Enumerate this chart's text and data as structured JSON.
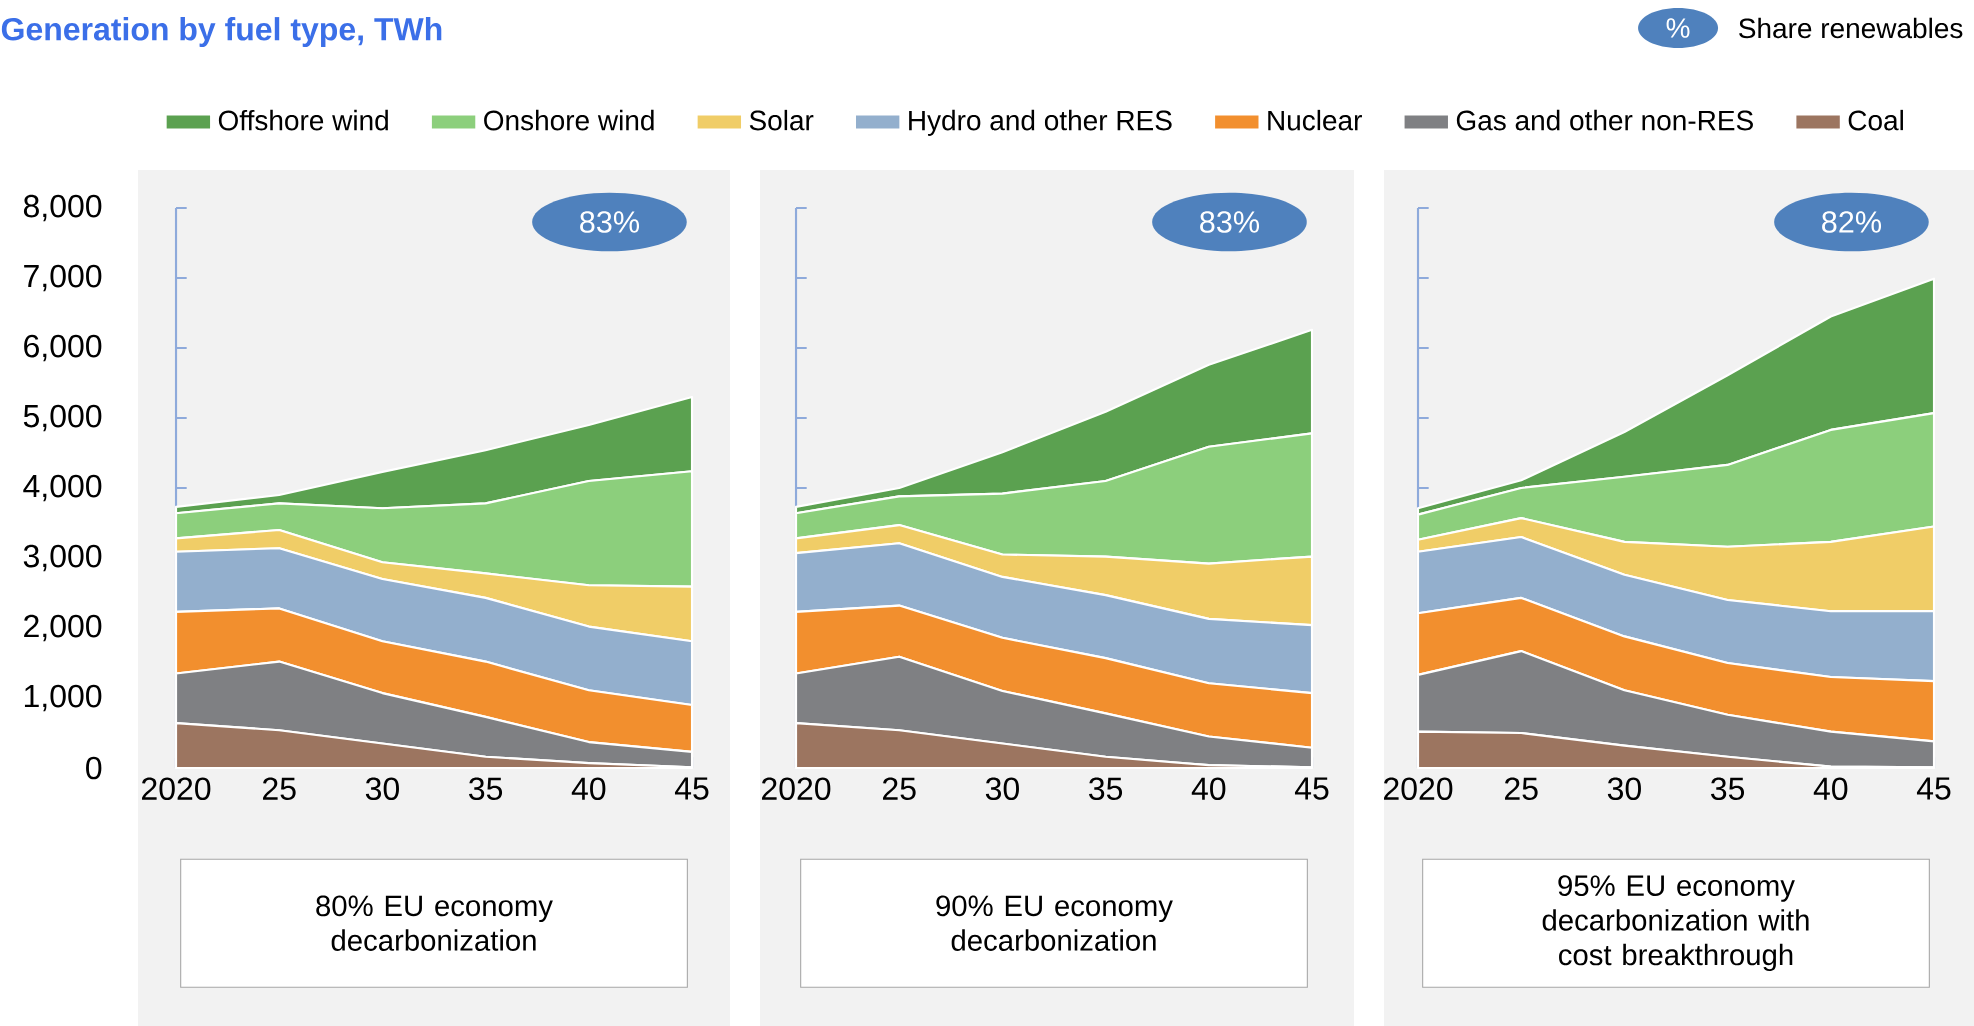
{
  "chart_data": [
    {
      "type": "area",
      "title": "Generation by fuel type, TWh",
      "xlabel": "80% EU economy decarbonization",
      "annotations": [
        "%",
        "Share renewables",
        "83%"
      ],
      "categories": [
        "2020",
        "25",
        "30",
        "35",
        "40",
        "45"
      ],
      "stacked": true,
      "legend": "top",
      "ylim": [
        0,
        8000
      ],
      "yticks": [
        0,
        {
          "value": 1000,
          "label": "1,000"
        },
        {
          "value": 2000,
          "label": "2,000"
        },
        {
          "value": 3000,
          "label": "3,000"
        },
        {
          "value": 4000,
          "label": "4,000"
        },
        {
          "value": 5000,
          "label": "5,000"
        },
        {
          "value": 6000,
          "label": "6,000"
        },
        {
          "value": 7000,
          "label": "7,000"
        },
        {
          "value": 8000,
          "label": "8,000"
        }
      ],
      "series": [
        {
          "name": "Coal",
          "color": "#9c7560",
          "values": [
            640,
            540,
            350,
            160,
            70,
            10
          ]
        },
        {
          "name": "Gas and other non-RES",
          "color": "#7f8083",
          "values": [
            710,
            980,
            720,
            570,
            300,
            220
          ]
        },
        {
          "name": "Nuclear",
          "color": "#f28f2e",
          "values": [
            880,
            760,
            740,
            790,
            740,
            670
          ]
        },
        {
          "name": "Hydro and other RES",
          "color": "#93afcd",
          "values": [
            860,
            860,
            890,
            910,
            910,
            910
          ]
        },
        {
          "name": "Solar",
          "color": "#f0cd67",
          "values": [
            190,
            260,
            240,
            350,
            590,
            780
          ]
        },
        {
          "name": "Onshore wind",
          "color": "#8ccf7c",
          "values": [
            360,
            380,
            770,
            1000,
            1490,
            1650
          ]
        },
        {
          "name": "Offshore wind",
          "color": "#5ba150",
          "values": [
            90,
            120,
            520,
            760,
            800,
            1060
          ]
        }
      ]
    },
    {
      "type": "area",
      "xlabel": "90% EU economy decarbonization",
      "annotations": [
        "83%"
      ],
      "categories": [
        "2020",
        "25",
        "30",
        "35",
        "40",
        "45"
      ],
      "stacked": true,
      "tick_labels": "x",
      "ylim": [
        0,
        8000
      ],
      "yticks": [
        0,
        1000,
        2000,
        3000,
        4000,
        5000,
        6000,
        7000,
        8000
      ],
      "series": [
        {
          "color": "#9c7560",
          "values": [
            640,
            540,
            350,
            160,
            40,
            10
          ]
        },
        {
          "color": "#7f8083",
          "values": [
            710,
            1050,
            750,
            620,
            410,
            280
          ]
        },
        {
          "color": "#f28f2e",
          "values": [
            880,
            730,
            760,
            790,
            760,
            780
          ]
        },
        {
          "color": "#93afcd",
          "values": [
            840,
            890,
            870,
            900,
            920,
            970
          ]
        },
        {
          "color": "#f0cd67",
          "values": [
            210,
            260,
            320,
            550,
            790,
            980
          ]
        },
        {
          "color": "#8ccf7c",
          "values": [
            360,
            410,
            870,
            1080,
            1670,
            1760
          ]
        },
        {
          "color": "#5ba150",
          "values": [
            90,
            120,
            590,
            990,
            1170,
            1480
          ]
        }
      ]
    },
    {
      "type": "area",
      "xlabel": "95% EU economy decarbonization with cost breakthrough",
      "annotations": [
        "82%"
      ],
      "categories": [
        "2020",
        "25",
        "30",
        "35",
        "40",
        "45"
      ],
      "stacked": true,
      "tick_labels": "x",
      "ylim": [
        0,
        8000
      ],
      "yticks": [
        0,
        1000,
        2000,
        3000,
        4000,
        5000,
        6000,
        7000,
        8000
      ],
      "series": [
        {
          "color": "#9c7560",
          "values": [
            520,
            500,
            320,
            160,
            20,
            10
          ]
        },
        {
          "color": "#7f8083",
          "values": [
            810,
            1170,
            790,
            600,
            500,
            370
          ]
        },
        {
          "color": "#f28f2e",
          "values": [
            880,
            760,
            770,
            740,
            780,
            860
          ]
        },
        {
          "color": "#93afcd",
          "values": [
            880,
            870,
            880,
            900,
            940,
            1000
          ]
        },
        {
          "color": "#f0cd67",
          "values": [
            170,
            270,
            470,
            760,
            990,
            1210
          ]
        },
        {
          "color": "#8ccf7c",
          "values": [
            360,
            430,
            930,
            1170,
            1600,
            1620
          ]
        },
        {
          "color": "#5ba150",
          "values": [
            90,
            110,
            640,
            1280,
            1620,
            1920
          ]
        }
      ]
    }
  ]
}
